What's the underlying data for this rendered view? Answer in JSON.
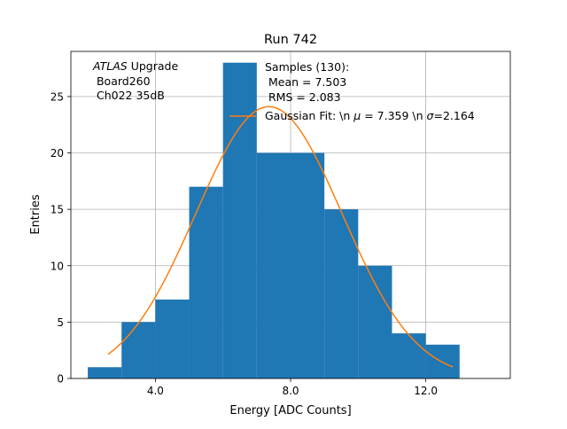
{
  "chart_data": {
    "type": "bar",
    "title": "Run 742",
    "xlabel": "Energy [ADC Counts]",
    "ylabel": "Entries",
    "xlim": [
      1.5,
      14.5
    ],
    "ylim": [
      0,
      29
    ],
    "grid": true,
    "x_ticks": [
      4.0,
      8.0,
      12.0
    ],
    "x_tick_labels": [
      "4.0",
      "8.0",
      "12.0"
    ],
    "y_ticks": [
      0,
      5,
      10,
      15,
      20,
      25
    ],
    "y_tick_labels": [
      "0",
      "5",
      "10",
      "15",
      "20",
      "25"
    ],
    "bin_edges": [
      2,
      3,
      4,
      5,
      6,
      7,
      8,
      9,
      10,
      11,
      12,
      13
    ],
    "values": [
      1,
      5,
      7,
      17,
      28,
      20,
      20,
      15,
      10,
      4,
      3
    ],
    "bar_color": "#1f77b4",
    "fit_color": "#ff7f0e",
    "fit": {
      "amplitude": 24.1,
      "mu": 7.359,
      "sigma": 2.164,
      "x_range": [
        2.6,
        12.8
      ]
    },
    "annotation_label": {
      "italic": "ATLAS",
      "rest": " Upgrade",
      "line2": " Board260",
      "line3": " Ch022 35dB"
    },
    "stats": {
      "line1": "Samples (130):",
      "line2": " Mean = 7.503",
      "line3": " RMS = 2.083"
    },
    "legend": {
      "prefix": "Gaussian Fit: \\n ",
      "mu_symbol": "μ",
      "middle": " = 7.359 \\n ",
      "sigma_symbol": "σ",
      "suffix": "=2.164"
    }
  }
}
